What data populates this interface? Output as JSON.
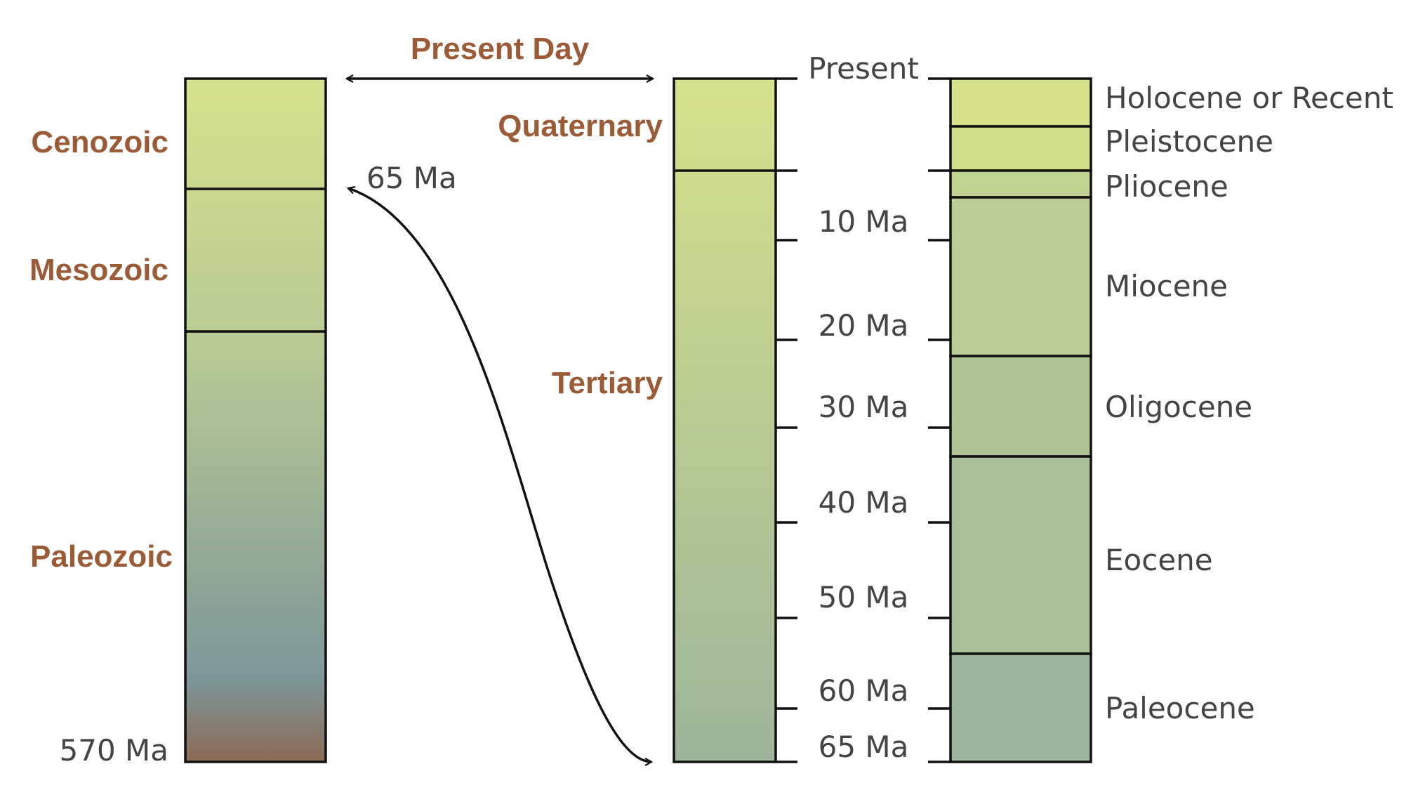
{
  "header": {
    "present_day_label": "Present Day"
  },
  "eras_column": {
    "eras": [
      {
        "name": "Cenozoic"
      },
      {
        "name": "Mesozoic"
      },
      {
        "name": "Paleozoic"
      }
    ],
    "boundary_label": "65 Ma",
    "bottom_label": "570 Ma",
    "gradient": [
      "#d6e28c",
      "#b8c995",
      "#7e9698",
      "#8a6a55"
    ]
  },
  "periods_column": {
    "periods": [
      {
        "name": "Quaternary"
      },
      {
        "name": "Tertiary"
      }
    ],
    "gradient": [
      "#d6e28c",
      "#9db49a"
    ]
  },
  "scale": {
    "ticks": [
      {
        "label": "Present",
        "value": 0
      },
      {
        "label": "10 Ma",
        "value": 10
      },
      {
        "label": "20 Ma",
        "value": 20
      },
      {
        "label": "30 Ma",
        "value": 30
      },
      {
        "label": "40 Ma",
        "value": 40
      },
      {
        "label": "50 Ma",
        "value": 50
      },
      {
        "label": "60 Ma",
        "value": 60
      },
      {
        "label": "65 Ma",
        "value": 65
      }
    ]
  },
  "epochs_column": {
    "epochs": [
      {
        "name": "Holocene or Recent",
        "color": "#d6e28c"
      },
      {
        "name": "Pleistocene",
        "color": "#d0de8c"
      },
      {
        "name": "Pliocene",
        "color": "#c3d392"
      },
      {
        "name": "Miocene",
        "color": "#bccc98"
      },
      {
        "name": "Oligocene",
        "color": "#b0c497"
      },
      {
        "name": "Eocene",
        "color": "#a9c09b"
      },
      {
        "name": "Paleocene",
        "color": "#9db49d"
      }
    ]
  }
}
